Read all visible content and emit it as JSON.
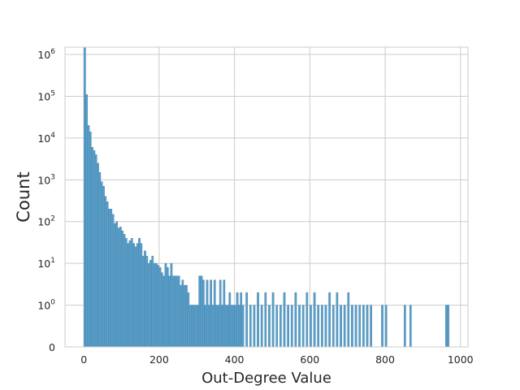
{
  "chart_data": {
    "type": "bar",
    "title": "",
    "xlabel": "Out-Degree Value",
    "ylabel": "Count",
    "x_scale": "linear",
    "y_scale": "symlog",
    "xlim": [
      -50,
      1020
    ],
    "ylim": [
      0,
      1500000
    ],
    "x_ticks": [
      {
        "value": 0,
        "label": "0"
      },
      {
        "value": 200,
        "label": "200"
      },
      {
        "value": 400,
        "label": "400"
      },
      {
        "value": 600,
        "label": "600"
      },
      {
        "value": 800,
        "label": "800"
      },
      {
        "value": 1000,
        "label": "1000"
      }
    ],
    "y_ticks": [
      {
        "value": 0,
        "base": "0",
        "exp": ""
      },
      {
        "value": 1,
        "base": "10",
        "exp": "0"
      },
      {
        "value": 10,
        "base": "10",
        "exp": "1"
      },
      {
        "value": 100,
        "base": "10",
        "exp": "2"
      },
      {
        "value": 1000,
        "base": "10",
        "exp": "3"
      },
      {
        "value": 10000,
        "base": "10",
        "exp": "4"
      },
      {
        "value": 100000,
        "base": "10",
        "exp": "5"
      },
      {
        "value": 1000000,
        "base": "10",
        "exp": "6"
      }
    ],
    "grid": true,
    "bin_width": 4.9,
    "bar_color": "#5b9fc9",
    "bar_edge_color": "#3d7fa9",
    "series": [
      {
        "x": [
          0,
          5,
          10,
          15,
          20,
          25,
          30,
          35,
          40,
          45,
          50,
          55,
          60,
          65,
          70,
          75,
          80,
          85,
          90,
          95,
          100,
          105,
          110,
          115,
          120,
          125,
          130,
          135,
          140,
          145,
          150,
          155,
          160,
          165,
          170,
          175,
          180,
          185,
          190,
          195,
          200,
          205,
          210,
          215,
          220,
          225,
          230,
          235,
          240,
          245,
          250,
          255,
          260,
          265,
          270,
          275,
          280,
          285,
          290,
          295,
          300,
          305,
          310,
          315,
          320,
          325,
          330,
          335,
          340,
          345,
          350,
          355,
          360,
          365,
          370,
          375,
          380,
          385,
          390,
          395,
          400,
          405,
          410,
          415,
          420,
          430,
          440,
          450,
          460,
          470,
          480,
          490,
          500,
          510,
          520,
          530,
          540,
          550,
          560,
          570,
          580,
          590,
          600,
          610,
          620,
          630,
          640,
          650,
          660,
          670,
          680,
          690,
          700,
          710,
          720,
          730,
          740,
          750,
          760,
          790,
          800,
          850,
          865,
          960,
          965
        ],
        "y": [
          1500000,
          110000,
          20000,
          14000,
          6000,
          5000,
          4000,
          2500,
          1500,
          900,
          700,
          400,
          300,
          200,
          200,
          150,
          90,
          100,
          70,
          75,
          60,
          50,
          40,
          30,
          35,
          40,
          30,
          25,
          30,
          40,
          30,
          15,
          20,
          15,
          10,
          12,
          15,
          10,
          10,
          9,
          8,
          6,
          5,
          10,
          8,
          5,
          10,
          5,
          5,
          5,
          5,
          3,
          4,
          3,
          3,
          2,
          1,
          1,
          1,
          1,
          1,
          5,
          5,
          4,
          1,
          4,
          1,
          4,
          1,
          4,
          1,
          1,
          4,
          1,
          4,
          1,
          1,
          2,
          1,
          1,
          1,
          2,
          1,
          2,
          1,
          2,
          1,
          1,
          2,
          1,
          2,
          1,
          2,
          1,
          1,
          2,
          1,
          1,
          2,
          1,
          1,
          2,
          1,
          2,
          1,
          1,
          1,
          2,
          1,
          2,
          1,
          1,
          2,
          1,
          1,
          1,
          1,
          1,
          1,
          1,
          1,
          1,
          1,
          1,
          1
        ]
      }
    ]
  }
}
